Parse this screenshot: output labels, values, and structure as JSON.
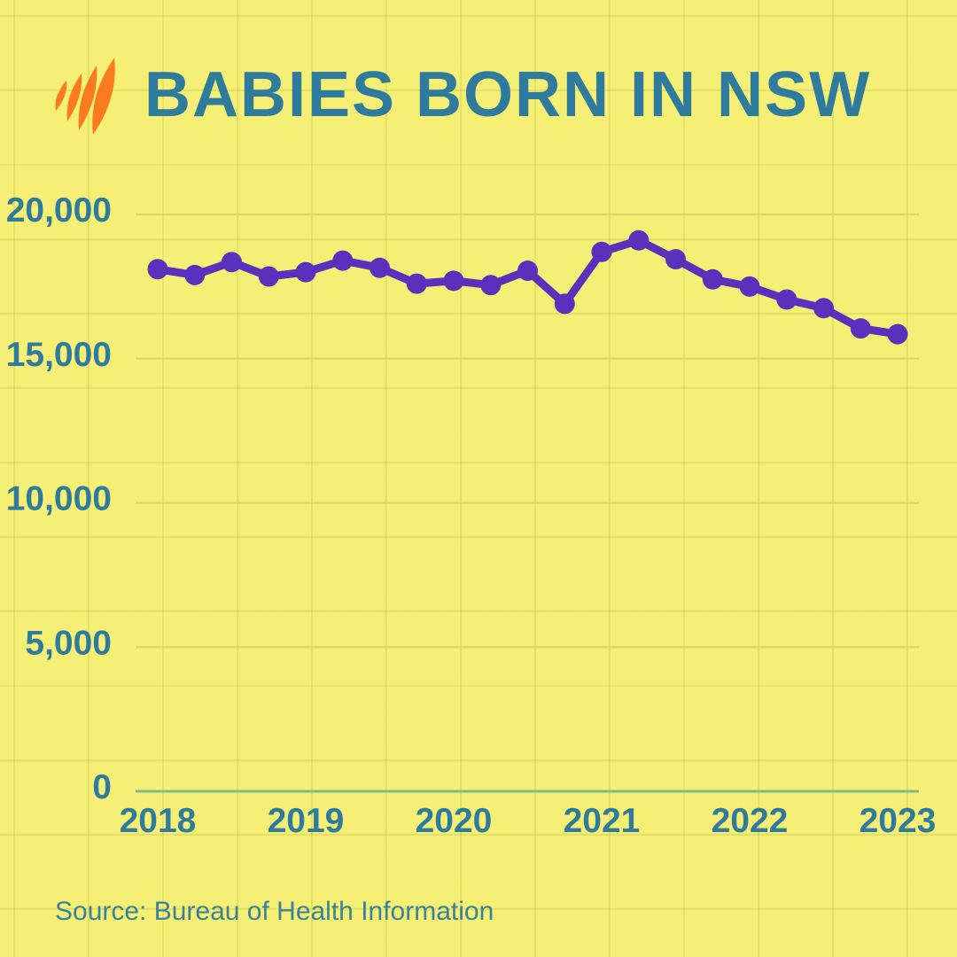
{
  "header": {
    "title": "BABIES BORN IN NSW",
    "logo": "sbs-flame-logo"
  },
  "source": {
    "text": "Source: Bureau of Health Information"
  },
  "colors": {
    "background": "#F6EF75",
    "teal": "#2E7B9E",
    "teal_soft": "#38829A",
    "line_purple": "#5A31BD",
    "logo_orange": "#FB7C1F",
    "baseline_green": "#7CBB8C",
    "gridline_olive": "#D9D567"
  },
  "chart_data": {
    "type": "line",
    "title": "BABIES BORN IN NSW",
    "xlabel": "",
    "ylabel": "",
    "ylim": [
      0,
      20000
    ],
    "ytick_interval": 5000,
    "ytick_labels": [
      "0",
      "5,000",
      "10,000",
      "15,000",
      "20,000"
    ],
    "x_year_labels": [
      "2018",
      "2019",
      "2020",
      "2021",
      "2022",
      "2023"
    ],
    "frequency": "quarterly",
    "grid": "horizontal",
    "legend_position": "none",
    "marker": "circle",
    "series": [
      {
        "name": "Babies born in NSW",
        "x": [
          "2018 Q1",
          "2018 Q2",
          "2018 Q3",
          "2018 Q4",
          "2019 Q1",
          "2019 Q2",
          "2019 Q3",
          "2019 Q4",
          "2020 Q1",
          "2020 Q2",
          "2020 Q3",
          "2020 Q4",
          "2021 Q1",
          "2021 Q2",
          "2021 Q3",
          "2021 Q4",
          "2022 Q1",
          "2022 Q2",
          "2022 Q3",
          "2022 Q4",
          "2023 Q1"
        ],
        "values": [
          18100,
          17900,
          18350,
          17850,
          18000,
          18400,
          18150,
          17600,
          17700,
          17550,
          18050,
          16900,
          18700,
          19100,
          18450,
          17750,
          17500,
          17050,
          16750,
          16050,
          15850
        ]
      }
    ]
  }
}
